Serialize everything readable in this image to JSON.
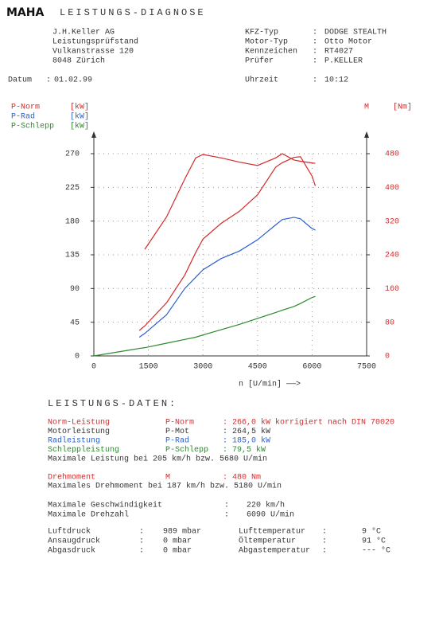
{
  "header": {
    "logo": "MAHA",
    "title": "LEISTUNGS-DIAGNOSE",
    "address": [
      "J.H.Keller AG",
      "Leistungsprüfstand",
      "Vulkanstrasse  120",
      "8048 Zürich"
    ],
    "vehicle": [
      [
        "KFZ-Typ",
        ":",
        "DODGE STEALTH"
      ],
      [
        "Motor-Typ",
        ":",
        "Otto Motor"
      ],
      [
        "Kennzeichen",
        ":",
        "RT4027"
      ],
      [
        "Prüfer",
        ":",
        "P.KELLER"
      ]
    ],
    "date": [
      "Datum",
      ":",
      "01.02.99"
    ],
    "time": [
      "Uhrzeit",
      ":",
      "10:12"
    ]
  },
  "chart_data": {
    "type": "line",
    "legend_left": [
      [
        "P-Norm",
        "[kW]"
      ],
      [
        "P-Rad",
        "[kW]"
      ],
      [
        "P-Schlepp",
        "[kW]"
      ]
    ],
    "legend_right": [
      "M",
      "[Nm]"
    ],
    "xlabel": "n [U/min]  ——>",
    "x": [
      0,
      1000,
      1250,
      1400,
      2000,
      2500,
      2800,
      3000,
      3500,
      4000,
      4500,
      5000,
      5180,
      5500,
      5680,
      6000,
      6090
    ],
    "series": [
      {
        "name": "P-Norm",
        "color": "#d42a2a",
        "values": [
          null,
          null,
          34,
          40,
          71,
          108,
          138,
          156,
          177,
          193,
          215,
          252,
          258,
          265,
          266,
          240,
          227
        ]
      },
      {
        "name": "P-Rad",
        "color": "#2a5fd0",
        "values": [
          null,
          null,
          25,
          30,
          55,
          90,
          105,
          115,
          130,
          140,
          155,
          175,
          182,
          185,
          183,
          170,
          168
        ]
      },
      {
        "name": "P-Schlepp",
        "color": "#2a8a2a",
        "values": [
          0,
          8,
          10,
          11,
          17,
          22,
          25,
          28,
          35,
          42,
          50,
          58,
          61,
          66,
          70,
          78,
          79.5
        ]
      },
      {
        "name": "M",
        "color": "#d42a2a",
        "axis": "y2",
        "values": [
          null,
          null,
          null,
          253,
          330,
          420,
          470,
          478,
          470,
          460,
          452,
          470,
          480,
          465,
          462,
          458,
          457
        ]
      }
    ],
    "xlim": [
      0,
      7500
    ],
    "xticks": [
      0,
      1500,
      3000,
      4500,
      6000,
      7500
    ],
    "ylim": [
      0,
      270
    ],
    "yticks": [
      0,
      45,
      90,
      135,
      180,
      225,
      270
    ],
    "y2lim": [
      0,
      480
    ],
    "y2ticks": [
      0,
      80,
      160,
      240,
      320,
      400,
      480
    ],
    "grid": true
  },
  "results": {
    "heading": "LEISTUNGS-DATEN:",
    "power": [
      [
        "Norm-Leistung",
        "P-Norm",
        ":",
        "266,0 kW korrigiert nach DIN 70020"
      ],
      [
        "Motorleistung",
        "P-Mot",
        ":",
        "264,5 kW"
      ],
      [
        "Radleistung",
        "P-Rad",
        ":",
        "185,0 kW"
      ],
      [
        "Schleppleistung",
        "P-Schlepp",
        ":",
        "79,5 kW"
      ]
    ],
    "power_max": "Maximale Leistung bei 205 km/h bzw.  5680 U/min",
    "torque": [
      "Drehmoment",
      "M",
      ":",
      "480 Nm"
    ],
    "torque_max": "Maximales Drehmoment bei 187 km/h bzw.  5180 U/min",
    "speed": [
      [
        "Maximale Geschwindigkeit",
        ":",
        "220 km/h"
      ],
      [
        "Maximale Drehzahl",
        ":",
        "6090 U/min"
      ]
    ],
    "ambient": [
      [
        "Luftdruck",
        ":",
        "989 mbar",
        "Lufttemperatur",
        ":",
        "9 °C"
      ],
      [
        "Ansaugdruck",
        ":",
        "0 mbar",
        "Öltemperatur",
        ":",
        "91 °C"
      ],
      [
        "Abgasdruck",
        ":",
        "0 mbar",
        "Abgastemperatur",
        ":",
        "--- °C"
      ]
    ]
  }
}
